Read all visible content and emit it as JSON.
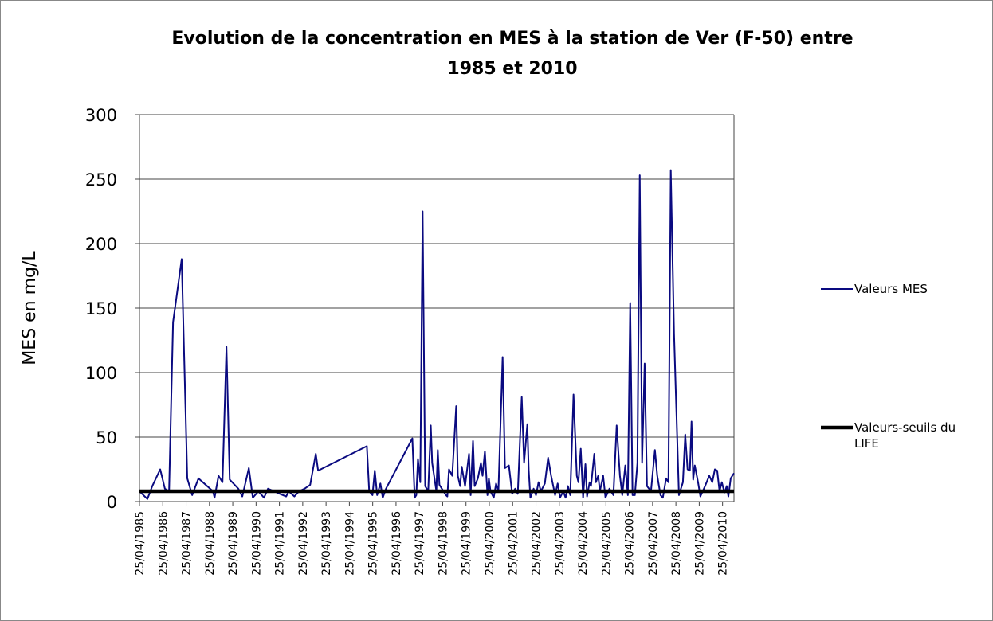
{
  "chart_data": {
    "type": "line",
    "title": "Evolution de la concentration en MES à la station de Ver (F-50) entre 1985 et 2010",
    "ylabel": "MES en mg/L",
    "xlim": [
      1985.31,
      2010.8
    ],
    "xticks": [
      {
        "value": 1985.31,
        "label": "25/04/1985"
      },
      {
        "value": 1986.31,
        "label": "25/04/1986"
      },
      {
        "value": 1987.31,
        "label": "25/04/1987"
      },
      {
        "value": 1988.31,
        "label": "25/04/1988"
      },
      {
        "value": 1989.31,
        "label": "25/04/1989"
      },
      {
        "value": 1990.31,
        "label": "25/04/1990"
      },
      {
        "value": 1991.31,
        "label": "25/04/1991"
      },
      {
        "value": 1992.31,
        "label": "25/04/1992"
      },
      {
        "value": 1993.31,
        "label": "25/04/1993"
      },
      {
        "value": 1994.31,
        "label": "25/04/1994"
      },
      {
        "value": 1995.31,
        "label": "25/04/1995"
      },
      {
        "value": 1996.31,
        "label": "25/04/1996"
      },
      {
        "value": 1997.31,
        "label": "25/04/1997"
      },
      {
        "value": 1998.31,
        "label": "25/04/1998"
      },
      {
        "value": 1999.31,
        "label": "25/04/1999"
      },
      {
        "value": 2000.31,
        "label": "25/04/2000"
      },
      {
        "value": 2001.31,
        "label": "25/04/2001"
      },
      {
        "value": 2002.31,
        "label": "25/04/2002"
      },
      {
        "value": 2003.31,
        "label": "25/04/2003"
      },
      {
        "value": 2004.31,
        "label": "25/04/2004"
      },
      {
        "value": 2005.31,
        "label": "25/04/2005"
      },
      {
        "value": 2006.31,
        "label": "25/04/2006"
      },
      {
        "value": 2007.31,
        "label": "25/04/2007"
      },
      {
        "value": 2008.31,
        "label": "25/04/2008"
      },
      {
        "value": 2009.31,
        "label": "25/04/2009"
      },
      {
        "value": 2010.31,
        "label": "25/04/2010"
      }
    ],
    "ylim": [
      0,
      300
    ],
    "yticks": [
      0,
      50,
      100,
      150,
      200,
      250,
      300
    ],
    "grid": true,
    "series": [
      {
        "name": "Valeurs MES",
        "color": "#0a0a80",
        "x": [
          1985.31,
          1985.65,
          1985.86,
          1986.2,
          1986.4,
          1986.58,
          1986.75,
          1987.12,
          1987.36,
          1987.57,
          1987.84,
          1988.46,
          1988.53,
          1988.7,
          1988.87,
          1989.04,
          1989.18,
          1989.55,
          1989.72,
          1990.0,
          1990.17,
          1990.41,
          1990.65,
          1990.82,
          1991.09,
          1991.33,
          1991.6,
          1991.71,
          1991.95,
          1992.15,
          1992.39,
          1992.63,
          1992.87,
          1992.97,
          1995.06,
          1995.16,
          1995.3,
          1995.4,
          1995.5,
          1995.64,
          1995.74,
          1995.88,
          1997.01,
          1997.11,
          1997.18,
          1997.25,
          1997.35,
          1997.45,
          1997.56,
          1997.69,
          1997.8,
          1997.86,
          1998.04,
          1998.1,
          1998.17,
          1998.45,
          1998.51,
          1998.58,
          1998.72,
          1998.89,
          1998.96,
          1999.06,
          1999.13,
          1999.27,
          1999.44,
          1999.51,
          1999.61,
          1999.68,
          1999.82,
          1999.95,
          2000.02,
          2000.12,
          2000.23,
          2000.29,
          2000.36,
          2000.5,
          2000.6,
          2000.7,
          2000.88,
          2000.98,
          2001.15,
          2001.29,
          2001.42,
          2001.53,
          2001.7,
          2001.8,
          2001.94,
          2002.0,
          2002.07,
          2002.21,
          2002.31,
          2002.42,
          2002.52,
          2002.69,
          2002.83,
          2002.96,
          2003.13,
          2003.24,
          2003.34,
          2003.48,
          2003.58,
          2003.68,
          2003.78,
          2003.92,
          2004.06,
          2004.13,
          2004.23,
          2004.33,
          2004.43,
          2004.5,
          2004.61,
          2004.67,
          2004.81,
          2004.88,
          2004.98,
          2005.05,
          2005.19,
          2005.29,
          2005.46,
          2005.63,
          2005.77,
          2005.91,
          2006.01,
          2006.14,
          2006.25,
          2006.35,
          2006.45,
          2006.55,
          2006.66,
          2006.76,
          2006.86,
          2006.97,
          2007.07,
          2007.24,
          2007.41,
          2007.51,
          2007.65,
          2007.75,
          2007.89,
          2007.99,
          2008.09,
          2008.23,
          2008.44,
          2008.61,
          2008.71,
          2008.81,
          2008.91,
          2008.98,
          2009.05,
          2009.12,
          2009.26,
          2009.36,
          2009.56,
          2009.74,
          2009.87,
          2009.98,
          2010.08,
          2010.18,
          2010.28,
          2010.39,
          2010.49,
          2010.56,
          2010.66,
          2010.8
        ],
        "values": [
          8,
          2,
          12,
          25,
          10,
          8,
          139,
          188,
          18,
          5,
          18,
          8,
          3,
          20,
          15,
          120,
          17,
          10,
          4,
          26,
          3,
          8,
          3,
          10,
          8,
          6,
          4,
          8,
          4,
          8,
          10,
          13,
          37,
          24,
          43,
          8,
          5,
          24,
          5,
          14,
          3,
          10,
          49,
          3,
          5,
          33,
          15,
          225,
          12,
          8,
          59,
          30,
          8,
          40,
          13,
          5,
          4,
          25,
          20,
          74,
          20,
          12,
          27,
          12,
          37,
          5,
          47,
          12,
          18,
          30,
          20,
          39,
          5,
          18,
          8,
          3,
          14,
          8,
          112,
          26,
          28,
          6,
          10,
          6,
          81,
          30,
          60,
          24,
          3,
          10,
          5,
          15,
          8,
          14,
          34,
          20,
          5,
          14,
          3,
          8,
          3,
          12,
          5,
          83,
          20,
          15,
          41,
          3,
          29,
          4,
          15,
          12,
          37,
          15,
          20,
          8,
          20,
          3,
          10,
          5,
          59,
          20,
          5,
          28,
          5,
          154,
          5,
          5,
          30,
          253,
          30,
          107,
          12,
          8,
          40,
          20,
          5,
          3,
          18,
          15,
          257,
          130,
          5,
          15,
          52,
          25,
          24,
          62,
          17,
          28,
          15,
          4,
          12,
          20,
          15,
          25,
          24,
          8,
          15,
          7,
          12,
          4,
          18,
          22
        ]
      },
      {
        "name": "Valeurs-seuils du LIFE",
        "color": "#000000",
        "x": [
          1985.31,
          2010.8
        ],
        "values": [
          8,
          8
        ]
      }
    ]
  }
}
